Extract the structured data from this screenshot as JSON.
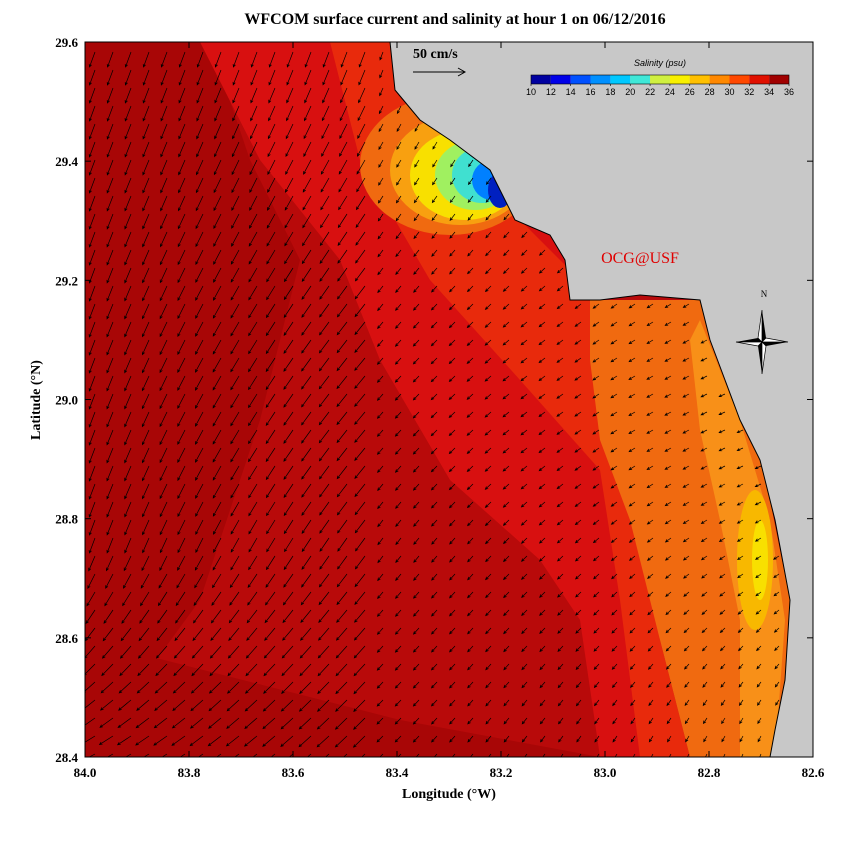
{
  "map": {
    "title": "WFCOM surface current and salinity at hour 1 on 06/12/2016",
    "xlabel": "Longitude (°W)",
    "ylabel": "Latitude (°N)",
    "xlim": [
      84,
      82.6
    ],
    "ylim": [
      28.4,
      29.6
    ],
    "xticks": [
      {
        "value": 84,
        "label": "84.0"
      },
      83.8,
      83.6,
      83.4,
      83.2,
      {
        "value": 83,
        "label": "83.0"
      },
      82.8,
      82.6
    ],
    "yticks": [
      28.4,
      28.6,
      28.8,
      {
        "value": 29,
        "label": "29.0"
      },
      29.2,
      29.4,
      29.6
    ],
    "colorbar": {
      "label": "Salinity (psu)",
      "lim": [
        10,
        36
      ],
      "ticks": [
        10,
        12,
        14,
        16,
        18,
        20,
        22,
        24,
        26,
        28,
        30,
        32,
        34,
        36
      ]
    },
    "scale_label": "50 cm/s",
    "credit": "OCG@USF",
    "compass": "N"
  }
}
